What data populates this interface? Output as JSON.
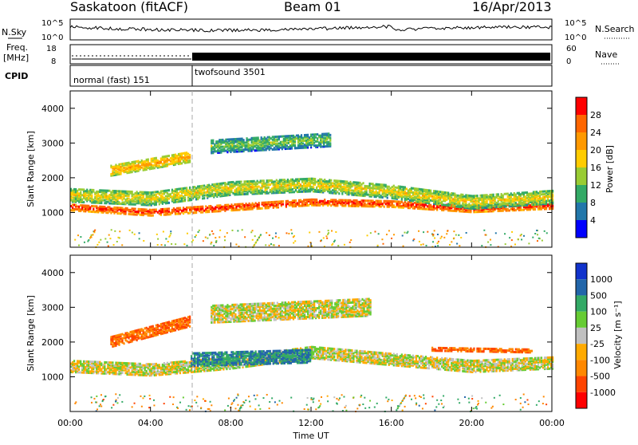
{
  "header": {
    "station": "Saskatoon (fitACF)",
    "beam": "Beam 01",
    "date": "16/Apr/2013"
  },
  "sky_panel": {
    "left_label": "N.Sky",
    "right_label": "N.Search",
    "left_ticks": [
      "10^5",
      "10^0"
    ],
    "right_ticks": [
      "10^5",
      "10^0"
    ]
  },
  "freq_panel": {
    "left_label_1": "Freq.",
    "left_label_2": "[MHz]",
    "right_label": "Nave",
    "left_ticks": [
      "18",
      "8"
    ],
    "right_ticks": [
      "60",
      "0"
    ]
  },
  "cpid_panel": {
    "label": "CPID",
    "modes": [
      {
        "name": "normal (fast) 151",
        "start_hour": 0
      },
      {
        "name": "twofsound 3501",
        "start_hour": 6
      }
    ]
  },
  "x_axis": {
    "label": "Time UT",
    "ticks": [
      "00:00",
      "04:00",
      "08:00",
      "12:00",
      "16:00",
      "20:00",
      "00:00"
    ]
  },
  "power_panel": {
    "ylabel": "Slant Range [km]",
    "yticks": [
      "4000",
      "3000",
      "2000",
      "1000"
    ],
    "colorbar_label": "Power [dB]",
    "colorbar_ticks": [
      "28",
      "24",
      "20",
      "16",
      "12",
      "8",
      "4"
    ],
    "colorbar_colors": [
      "#ff0000",
      "#ff6600",
      "#ff9900",
      "#ffcc00",
      "#99cc33",
      "#33aa66",
      "#2277aa",
      "#0000ff"
    ]
  },
  "velocity_panel": {
    "ylabel": "Slant Range [km]",
    "yticks": [
      "4000",
      "3000",
      "2000",
      "1000"
    ],
    "colorbar_label": "Velocity [m s⁻¹]",
    "colorbar_ticks": [
      "1000",
      "500",
      "100",
      "25",
      "-25",
      "-100",
      "-500",
      "-1000"
    ],
    "colorbar_colors": [
      "#1133cc",
      "#2266aa",
      "#33aa66",
      "#66cc33",
      "#c0c0c0",
      "#ffaa00",
      "#ff8800",
      "#ff4400",
      "#ff0000"
    ]
  },
  "chart_data": {
    "type": "heatmap",
    "x_unit": "hours UT",
    "xlim": [
      0,
      24
    ],
    "ylim_km": [
      0,
      4500
    ],
    "power_bands": [
      {
        "hours": [
          0,
          24
        ],
        "center_km": [
          1150,
          1000,
          1150,
          1300,
          1250,
          1100,
          1200
        ],
        "width_km": 200,
        "value_db": 28
      },
      {
        "hours": [
          0,
          24
        ],
        "center_km": [
          1500,
          1400,
          1700,
          1800,
          1600,
          1300,
          1450
        ],
        "width_km": 400,
        "value_db": 16
      },
      {
        "hours": [
          2,
          6
        ],
        "center_km": [
          2200,
          2600
        ],
        "width_km": 300,
        "value_db": 20
      },
      {
        "hours": [
          7,
          13
        ],
        "center_km": [
          2900,
          3100
        ],
        "width_km": 400,
        "value_db": 12
      }
    ],
    "velocity_bands": [
      {
        "hours": [
          0,
          24
        ],
        "center_km": [
          1300,
          1200,
          1400,
          1700,
          1500,
          1300,
          1400
        ],
        "width_km": 350,
        "value_ms": 0
      },
      {
        "hours": [
          2,
          6
        ],
        "center_km": [
          2000,
          2600
        ],
        "width_km": 300,
        "value_ms": -500
      },
      {
        "hours": [
          6,
          12
        ],
        "center_km": [
          1500,
          1600
        ],
        "width_km": 400,
        "value_ms": 500
      },
      {
        "hours": [
          7,
          15
        ],
        "center_km": [
          2800,
          3000
        ],
        "width_km": 500,
        "value_ms": 0
      },
      {
        "hours": [
          18,
          23
        ],
        "center_km": [
          1800,
          1750
        ],
        "width_km": 120,
        "value_ms": -500
      }
    ]
  }
}
